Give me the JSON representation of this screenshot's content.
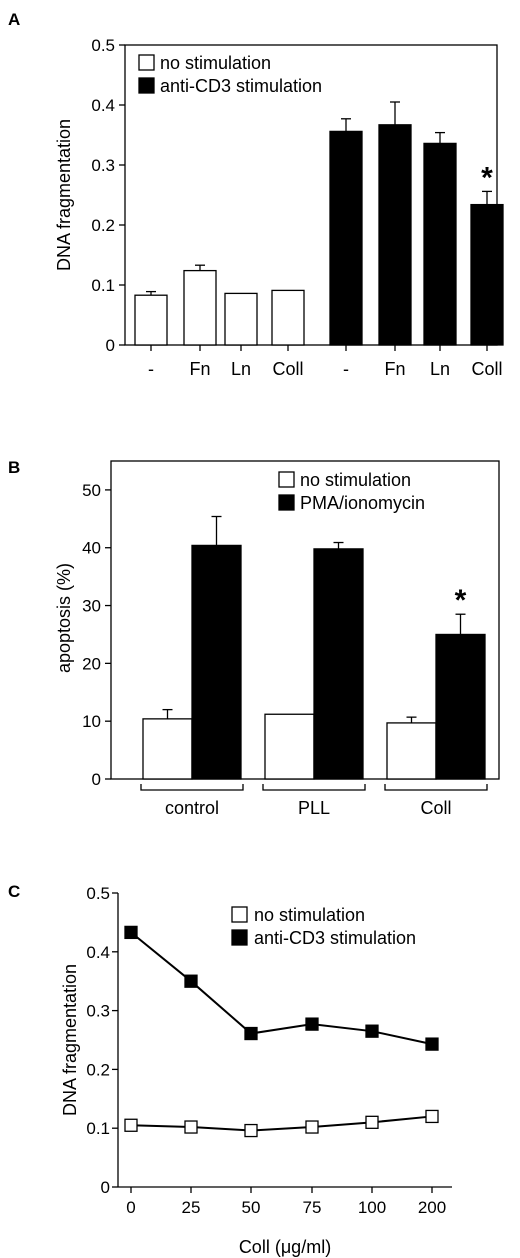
{
  "panels": {
    "A": "A",
    "B": "B",
    "C": "C"
  },
  "chart_data": [
    {
      "id": "A",
      "type": "bar",
      "ylabel": "DNA fragmentation",
      "ylim": [
        0,
        0.5
      ],
      "yticks": [
        "0",
        "0.1",
        "0.2",
        "0.3",
        "0.4",
        "0.5"
      ],
      "categories": [
        "-",
        "Fn",
        "Ln",
        "Coll",
        "-",
        "Fn",
        "Ln",
        "Coll"
      ],
      "legend": {
        "placement": "top-left",
        "entries": [
          "no stimulation",
          "anti-CD3 stimulation"
        ]
      },
      "series": [
        {
          "name": "no stimulation",
          "color": "#ffffff",
          "values": [
            0.083,
            0.124,
            0.086,
            0.091,
            null,
            null,
            null,
            null
          ],
          "errors": [
            0.006,
            0.009,
            0,
            0,
            null,
            null,
            null,
            null
          ]
        },
        {
          "name": "anti-CD3 stimulation",
          "color": "#000000",
          "values": [
            null,
            null,
            null,
            null,
            0.356,
            0.367,
            0.336,
            0.234
          ],
          "errors": [
            null,
            null,
            null,
            null,
            0.021,
            0.038,
            0.018,
            0.022
          ]
        }
      ],
      "annotations": [
        "*"
      ]
    },
    {
      "id": "B",
      "type": "bar",
      "ylabel": "apoptosis (%)",
      "ylim": [
        0,
        55
      ],
      "yticks": [
        "0",
        "10",
        "20",
        "30",
        "40",
        "50"
      ],
      "categories": [
        "control",
        "PLL",
        "Coll"
      ],
      "legend": {
        "placement": "top-right",
        "entries": [
          "no stimulation",
          "PMA/ionomycin"
        ]
      },
      "series": [
        {
          "name": "no stimulation",
          "color": "#ffffff",
          "values": [
            10.4,
            11.2,
            9.7
          ],
          "errors": [
            1.6,
            0,
            1.0
          ]
        },
        {
          "name": "PMA/ionomycin",
          "color": "#000000",
          "values": [
            40.4,
            39.8,
            25.0
          ],
          "errors": [
            5.0,
            1.1,
            3.5
          ]
        }
      ],
      "annotations": [
        "*"
      ]
    },
    {
      "id": "C",
      "type": "line",
      "xlabel": "Coll (μg/ml)",
      "ylabel": "DNA fragmentation",
      "ylim": [
        0,
        0.5
      ],
      "yticks": [
        "0",
        "0.1",
        "0.2",
        "0.3",
        "0.4",
        "0.5"
      ],
      "x": [
        "0",
        "25",
        "50",
        "75",
        "100",
        "200"
      ],
      "legend": {
        "placement": "top-right",
        "entries": [
          "no stimulation",
          "anti-CD3 stimulation"
        ]
      },
      "series": [
        {
          "name": "no stimulation",
          "marker": "open-square",
          "values": [
            0.105,
            0.102,
            0.096,
            0.102,
            0.11,
            0.12
          ]
        },
        {
          "name": "anti-CD3 stimulation",
          "marker": "filled-square",
          "values": [
            0.433,
            0.35,
            0.261,
            0.277,
            0.265,
            0.243
          ]
        }
      ]
    }
  ]
}
